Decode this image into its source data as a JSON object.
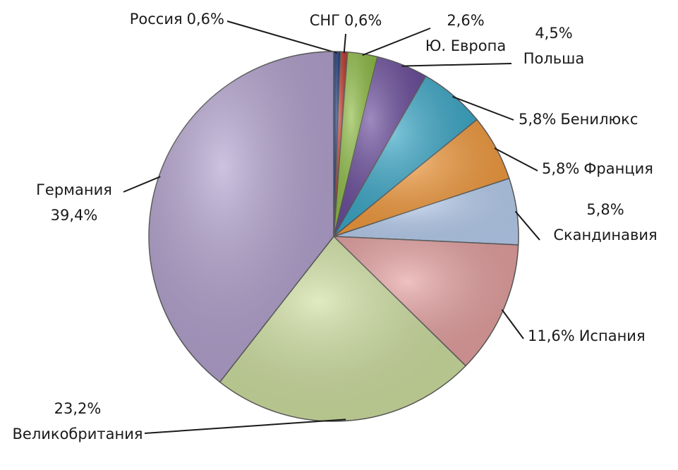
{
  "chart_data": {
    "type": "pie",
    "categories": [
      "Россия",
      "СНГ",
      "Ю. Европа",
      "Польша",
      "Бенилюкс",
      "Франция",
      "Скандинавия",
      "Испания",
      "Великобритания",
      "Германия"
    ],
    "values": [
      0.6,
      0.6,
      2.6,
      4.5,
      5.8,
      5.8,
      5.8,
      11.6,
      23.2,
      39.4
    ],
    "value_labels": [
      "0,6%",
      "0,6%",
      "2,6%",
      "4,5%",
      "5,8%",
      "5,8%",
      "5,8%",
      "11,6%",
      "23,2%",
      "39,4%"
    ],
    "colors": [
      "#1f3a7a",
      "#c0392b",
      "#8fbc45",
      "#6a4c9c",
      "#3aa8c8",
      "#f39a3c",
      "#b8cff0",
      "#e6a0a0",
      "#cfe0a0",
      "#b3a2cf"
    ]
  }
}
